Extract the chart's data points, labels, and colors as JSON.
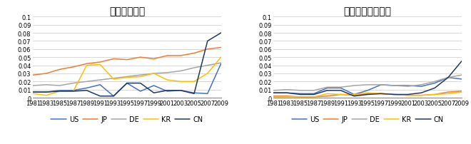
{
  "years": [
    1981,
    1983,
    1985,
    1987,
    1989,
    1991,
    1993,
    1995,
    1997,
    1999,
    2001,
    2003,
    2005,
    2007,
    2009
  ],
  "chart1_title": "合作研究比例",
  "chart2_title": "国际合作研究比例",
  "colors": {
    "US": "#4472C4",
    "JP": "#ED7D31",
    "DE": "#A5A5A5",
    "KR": "#FFC000",
    "CN": "#1F3864"
  },
  "chart1": {
    "US": [
      0.007,
      0.007,
      0.009,
      0.009,
      0.012,
      0.016,
      0.002,
      0.018,
      0.008,
      0.015,
      0.008,
      0.009,
      0.006,
      0.005,
      0.042
    ],
    "JP": [
      0.028,
      0.03,
      0.035,
      0.038,
      0.042,
      0.044,
      0.048,
      0.047,
      0.05,
      0.048,
      0.052,
      0.052,
      0.055,
      0.06,
      0.062
    ],
    "DE": [
      0.015,
      0.016,
      0.015,
      0.018,
      0.02,
      0.022,
      0.024,
      0.026,
      0.028,
      0.03,
      0.031,
      0.033,
      0.037,
      0.04,
      0.043
    ],
    "KR": [
      0.005,
      0.003,
      0.008,
      0.008,
      0.04,
      0.041,
      0.023,
      0.025,
      0.026,
      0.03,
      0.022,
      0.02,
      0.02,
      0.03,
      0.05
    ],
    "CN": [
      0.007,
      0.007,
      0.008,
      0.008,
      0.009,
      0.002,
      0.002,
      0.018,
      0.018,
      0.006,
      0.009,
      0.009,
      0.005,
      0.07,
      0.08
    ]
  },
  "chart2": {
    "US": [
      0.006,
      0.006,
      0.005,
      0.005,
      0.012,
      0.012,
      0.004,
      0.009,
      0.016,
      0.015,
      0.015,
      0.014,
      0.018,
      0.025,
      0.023
    ],
    "JP": [
      0.002,
      0.002,
      0.001,
      0.001,
      0.002,
      0.004,
      0.003,
      0.005,
      0.005,
      0.004,
      0.003,
      0.003,
      0.004,
      0.007,
      0.008
    ],
    "DE": [
      0.009,
      0.01,
      0.009,
      0.009,
      0.013,
      0.013,
      0.015,
      0.016,
      0.016,
      0.015,
      0.014,
      0.016,
      0.02,
      0.025,
      0.028
    ],
    "KR": [
      0.001,
      0.001,
      0.001,
      0.001,
      0.005,
      0.004,
      0.004,
      0.006,
      0.005,
      0.004,
      0.003,
      0.003,
      0.004,
      0.005,
      0.007
    ],
    "CN": [
      0.006,
      0.006,
      0.004,
      0.004,
      0.009,
      0.009,
      0.002,
      0.004,
      0.005,
      0.004,
      0.004,
      0.006,
      0.012,
      0.025,
      0.045
    ]
  },
  "ylim": [
    0,
    0.1
  ],
  "yticks": [
    0,
    0.01,
    0.02,
    0.03,
    0.04,
    0.05,
    0.06,
    0.07,
    0.08,
    0.09,
    0.1
  ],
  "ytick_labels": [
    "0",
    "0.01",
    "0.02",
    "0.03",
    "0.04",
    "0.05",
    "0.06",
    "0.07",
    "0.08",
    "0.09",
    "0.1"
  ],
  "xtick_labels": [
    "1981",
    "1983",
    "1985",
    "1987",
    "1989",
    "1991",
    "1993",
    "1995",
    "1997",
    "1999",
    "2001",
    "2003",
    "2005",
    "2007",
    "2009"
  ],
  "legend_order": [
    "US",
    "JP",
    "DE",
    "KR",
    "CN"
  ],
  "background_color": "#FFFFFF",
  "grid_color": "#C8C8C8",
  "title_fontsize": 10,
  "tick_fontsize": 6,
  "legend_fontsize": 7,
  "line_width": 1.1
}
